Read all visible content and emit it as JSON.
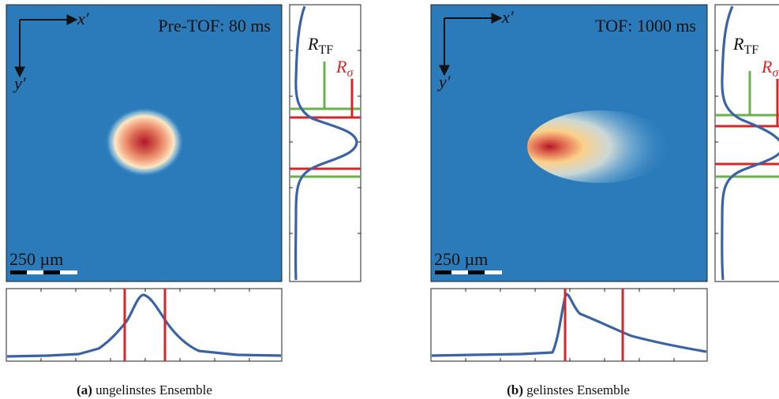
{
  "panels": [
    {
      "label": "Pre-TOF: 80 ms",
      "x_axis": "x′",
      "y_axis": "y′",
      "scale_bar": "250 µm",
      "r_tf": {
        "main": "R",
        "sub": "TF"
      },
      "r_sigma": {
        "main": "R",
        "sub": "σ"
      },
      "caption": {
        "tag": "(a)",
        "text": "ungelinstes Ensemble"
      }
    },
    {
      "label": "TOF: 1000 ms",
      "x_axis": "x′",
      "y_axis": "y′",
      "scale_bar": "250 µm",
      "r_tf": {
        "main": "R",
        "sub": "TF"
      },
      "r_sigma": {
        "main": "R",
        "sub": "σ"
      },
      "caption": {
        "tag": "(b)",
        "text": "gelinstes Ensemble"
      }
    }
  ]
}
